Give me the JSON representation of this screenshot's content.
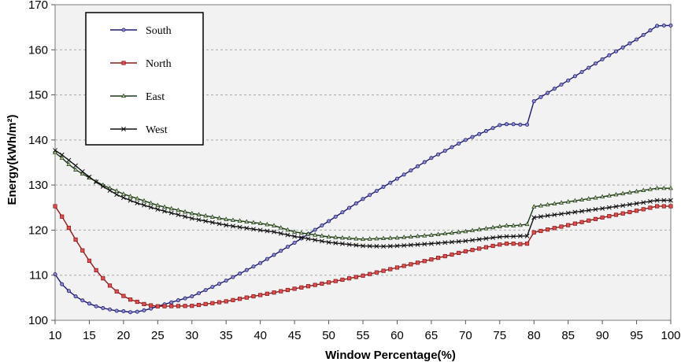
{
  "chart_data": {
    "type": "line",
    "title": "",
    "xlabel": "Window Percentage(%)",
    "ylabel": "Energy(kWh/m²)",
    "xlim": [
      10,
      100
    ],
    "ylim": [
      100,
      170
    ],
    "xticks": [
      10,
      15,
      20,
      25,
      30,
      35,
      40,
      45,
      50,
      55,
      60,
      65,
      70,
      75,
      80,
      85,
      90,
      95,
      100
    ],
    "yticks": [
      100,
      110,
      120,
      130,
      140,
      150,
      160,
      170
    ],
    "grid": "horizontal",
    "legend_position": "top-left",
    "series": [
      {
        "name": "South",
        "color": "#1a1a6e",
        "marker": "circle",
        "marker_fill": "#8f8fd0",
        "points": [
          [
            10,
            110.2
          ],
          [
            11,
            108.0
          ],
          [
            12,
            106.5
          ],
          [
            13,
            105.3
          ],
          [
            14,
            104.4
          ],
          [
            15,
            103.7
          ],
          [
            16,
            103.1
          ],
          [
            17,
            102.7
          ],
          [
            18,
            102.4
          ],
          [
            19,
            102.1
          ],
          [
            20,
            102.0
          ],
          [
            21,
            101.8
          ],
          [
            22,
            101.9
          ],
          [
            23,
            102.2
          ],
          [
            24,
            102.6
          ],
          [
            25,
            103.1
          ],
          [
            30,
            105.3
          ],
          [
            35,
            108.8
          ],
          [
            40,
            112.7
          ],
          [
            45,
            117.2
          ],
          [
            50,
            122.0
          ],
          [
            55,
            126.9
          ],
          [
            60,
            131.4
          ],
          [
            65,
            136.0
          ],
          [
            70,
            140.0
          ],
          [
            75,
            143.3
          ],
          [
            76,
            143.5
          ],
          [
            77,
            143.5
          ],
          [
            78,
            143.4
          ],
          [
            79,
            143.4
          ],
          [
            80,
            148.6
          ],
          [
            85,
            153.2
          ],
          [
            90,
            157.9
          ],
          [
            95,
            162.3
          ],
          [
            98,
            165.3
          ],
          [
            99,
            165.4
          ],
          [
            100,
            165.4
          ]
        ]
      },
      {
        "name": "North",
        "color": "#8b1a1a",
        "marker": "square",
        "marker_fill": "#e05050",
        "points": [
          [
            10,
            125.3
          ],
          [
            11,
            123.0
          ],
          [
            12,
            120.5
          ],
          [
            13,
            117.9
          ],
          [
            14,
            115.5
          ],
          [
            15,
            113.2
          ],
          [
            16,
            111.1
          ],
          [
            17,
            109.3
          ],
          [
            18,
            107.7
          ],
          [
            19,
            106.4
          ],
          [
            20,
            105.4
          ],
          [
            21,
            104.6
          ],
          [
            22,
            104.1
          ],
          [
            23,
            103.6
          ],
          [
            24,
            103.3
          ],
          [
            25,
            103.1
          ],
          [
            30,
            103.2
          ],
          [
            35,
            104.2
          ],
          [
            40,
            105.6
          ],
          [
            45,
            107.0
          ],
          [
            50,
            108.4
          ],
          [
            55,
            109.9
          ],
          [
            60,
            111.7
          ],
          [
            65,
            113.5
          ],
          [
            70,
            115.3
          ],
          [
            75,
            116.8
          ],
          [
            76,
            117.0
          ],
          [
            77,
            117.0
          ],
          [
            78,
            116.9
          ],
          [
            79,
            117.0
          ],
          [
            80,
            119.5
          ],
          [
            85,
            121.1
          ],
          [
            90,
            122.8
          ],
          [
            95,
            124.3
          ],
          [
            98,
            125.3
          ],
          [
            100,
            125.3
          ]
        ]
      },
      {
        "name": "East",
        "color": "#1a3a1a",
        "marker": "triangle",
        "marker_fill": "#b8c890",
        "points": [
          [
            10,
            137.2
          ],
          [
            11,
            136.0
          ],
          [
            12,
            134.6
          ],
          [
            13,
            133.4
          ],
          [
            14,
            132.5
          ],
          [
            15,
            131.6
          ],
          [
            16,
            130.8
          ],
          [
            17,
            130.0
          ],
          [
            18,
            129.3
          ],
          [
            19,
            128.7
          ],
          [
            20,
            128.0
          ],
          [
            22,
            127.0
          ],
          [
            25,
            125.5
          ],
          [
            30,
            123.7
          ],
          [
            35,
            122.4
          ],
          [
            40,
            121.5
          ],
          [
            42,
            121.0
          ],
          [
            45,
            119.6
          ],
          [
            50,
            118.5
          ],
          [
            55,
            118.0
          ],
          [
            60,
            118.3
          ],
          [
            65,
            118.9
          ],
          [
            70,
            119.7
          ],
          [
            75,
            120.8
          ],
          [
            76,
            121.0
          ],
          [
            77,
            121.0
          ],
          [
            78,
            121.1
          ],
          [
            79,
            121.3
          ],
          [
            80,
            125.2
          ],
          [
            85,
            126.3
          ],
          [
            90,
            127.4
          ],
          [
            95,
            128.6
          ],
          [
            98,
            129.3
          ],
          [
            100,
            129.3
          ]
        ]
      },
      {
        "name": "West",
        "color": "#111111",
        "marker": "x",
        "marker_fill": "#111111",
        "points": [
          [
            10,
            137.7
          ],
          [
            11,
            136.7
          ],
          [
            12,
            135.5
          ],
          [
            13,
            134.3
          ],
          [
            14,
            133.0
          ],
          [
            15,
            131.8
          ],
          [
            16,
            130.7
          ],
          [
            17,
            129.7
          ],
          [
            18,
            128.8
          ],
          [
            19,
            127.9
          ],
          [
            20,
            127.2
          ],
          [
            22,
            126.0
          ],
          [
            25,
            124.6
          ],
          [
            30,
            122.6
          ],
          [
            35,
            121.1
          ],
          [
            40,
            120.0
          ],
          [
            42,
            119.6
          ],
          [
            45,
            118.6
          ],
          [
            50,
            117.3
          ],
          [
            55,
            116.5
          ],
          [
            58,
            116.4
          ],
          [
            60,
            116.5
          ],
          [
            65,
            117.0
          ],
          [
            70,
            117.6
          ],
          [
            75,
            118.5
          ],
          [
            76,
            118.6
          ],
          [
            77,
            118.6
          ],
          [
            78,
            118.7
          ],
          [
            79,
            118.7
          ],
          [
            80,
            122.8
          ],
          [
            85,
            123.8
          ],
          [
            90,
            124.8
          ],
          [
            95,
            125.9
          ],
          [
            98,
            126.6
          ],
          [
            100,
            126.6
          ]
        ]
      }
    ]
  }
}
